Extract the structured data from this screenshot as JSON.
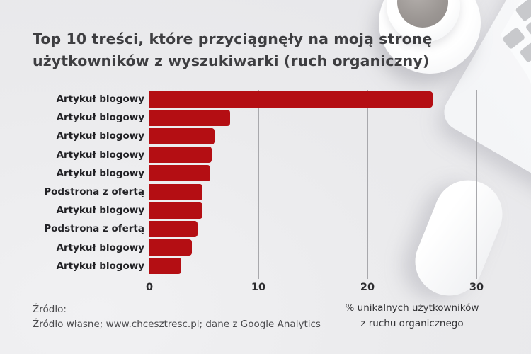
{
  "title": "Top 10 treści, które przyciągnęły na moją stronę użytkowników z wyszukiwarki (ruch organiczny)",
  "title_lines": [
    "Top 10 treści, które przyciągnęły na moją stronę",
    "użytkowników z wyszukiwarki (ruch organiczny)"
  ],
  "source": {
    "label": "Źródło:",
    "text": "Źródło własne; www.chcesztresc.pl; dane z Google Analytics"
  },
  "colors": {
    "bar_red": "#b40e13",
    "title_gray": "#3e3e41",
    "background_gray": "#ebebed"
  },
  "decor": {
    "items": [
      "coffee-cup-photo",
      "laptop-keyboard-photo",
      "laptop-edge-photo",
      "computer-mouse-photo"
    ]
  },
  "chart_data": {
    "type": "bar",
    "orientation": "horizontal",
    "title": "Top 10 treści, które przyciągnęły na moją stronę użytkowników z wyszukiwarki (ruch organiczny)",
    "categories": [
      "Artykuł blogowy",
      "Artykuł blogowy",
      "Artykuł blogowy",
      "Artykuł blogowy",
      "Artykuł blogowy",
      "Podstrona z ofertą",
      "Artykuł blogowy",
      "Podstrona z ofertą",
      "Artykuł blogowy",
      "Artykuł blogowy"
    ],
    "values": [
      26.0,
      7.4,
      6.0,
      5.7,
      5.6,
      4.9,
      4.9,
      4.4,
      3.9,
      2.9
    ],
    "xlabel": "% unikalnych użytkowników z ruchu organicznego",
    "xlabel_lines": [
      "% unikalnych użytkowników",
      "z ruchu organicznego"
    ],
    "ylabel": "",
    "x_ticks": [
      0,
      10,
      20,
      30
    ],
    "xlim": [
      0,
      32
    ],
    "grid": true,
    "legend": null,
    "bar_color": "#b40e13"
  }
}
